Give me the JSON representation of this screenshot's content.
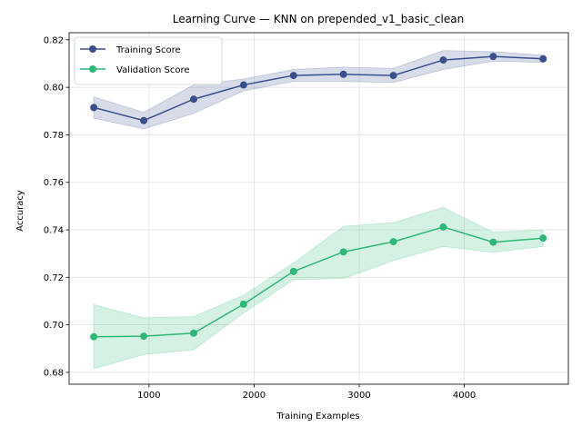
{
  "chart_data": {
    "type": "line",
    "title": "Learning Curve — KNN on prepended_v1_basic_clean",
    "xlabel": "Training Examples",
    "ylabel": "Accuracy",
    "xlim": [
      240,
      4990
    ],
    "ylim": [
      0.675,
      0.823
    ],
    "xticks": [
      1000,
      2000,
      3000,
      4000
    ],
    "xtick_labels": [
      "1000",
      "2000",
      "3000",
      "4000"
    ],
    "yticks": [
      0.68,
      0.7,
      0.72,
      0.74,
      0.76,
      0.78,
      0.8,
      0.82
    ],
    "ytick_labels": [
      "0.68",
      "0.70",
      "0.72",
      "0.74",
      "0.76",
      "0.78",
      "0.80",
      "0.82"
    ],
    "grid": true,
    "legend_position": "top-left",
    "x": [
      475,
      950,
      1425,
      1900,
      2375,
      2850,
      3325,
      3800,
      4275,
      4750
    ],
    "series": [
      {
        "name": "Training Score",
        "color": "#3a4f8e",
        "values": [
          0.7915,
          0.786,
          0.795,
          0.801,
          0.805,
          0.8055,
          0.805,
          0.8115,
          0.813,
          0.812
        ],
        "lower": [
          0.787,
          0.7825,
          0.789,
          0.7985,
          0.8025,
          0.8025,
          0.802,
          0.8075,
          0.811,
          0.8105
        ],
        "upper": [
          0.796,
          0.7895,
          0.801,
          0.8035,
          0.8075,
          0.8085,
          0.808,
          0.8155,
          0.815,
          0.8135
        ]
      },
      {
        "name": "Validation Score",
        "color": "#2fb77a",
        "values": [
          0.695,
          0.6952,
          0.6965,
          0.7087,
          0.7225,
          0.7307,
          0.735,
          0.7412,
          0.7348,
          0.7365
        ],
        "lower": [
          0.6815,
          0.6875,
          0.6895,
          0.705,
          0.719,
          0.7195,
          0.727,
          0.733,
          0.7305,
          0.733
        ],
        "upper": [
          0.7085,
          0.703,
          0.7035,
          0.7125,
          0.726,
          0.7415,
          0.743,
          0.7495,
          0.739,
          0.74
        ]
      }
    ]
  }
}
